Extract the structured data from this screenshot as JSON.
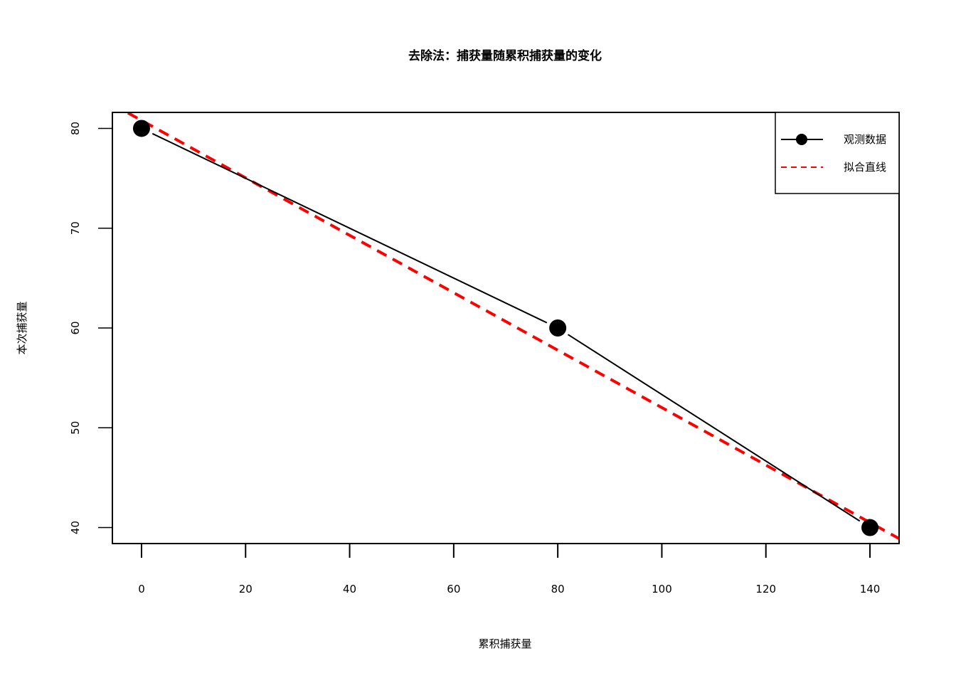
{
  "chart_data": {
    "type": "line",
    "title": "去除法：捕获量随累积捕获量的变化",
    "xlabel": "累积捕获量",
    "ylabel": "本次捕获量",
    "xlim": [
      -5.6,
      145.6
    ],
    "ylim": [
      38.4,
      81.6
    ],
    "xticks": [
      0,
      20,
      40,
      60,
      80,
      100,
      120,
      140
    ],
    "yticks": [
      40,
      50,
      60,
      70,
      80
    ],
    "grid": false,
    "legend": {
      "position": "top-right",
      "entries": [
        "观测数据",
        "拟合直线"
      ]
    },
    "series": [
      {
        "name": "观测数据",
        "style": "line-points",
        "color": "#000000",
        "x": [
          0,
          80,
          140
        ],
        "y": [
          80,
          60,
          40
        ]
      },
      {
        "name": "拟合直线",
        "style": "dashed-line",
        "color": "#ff0000",
        "intercept": 80.8,
        "slope": -0.2878
      }
    ]
  }
}
